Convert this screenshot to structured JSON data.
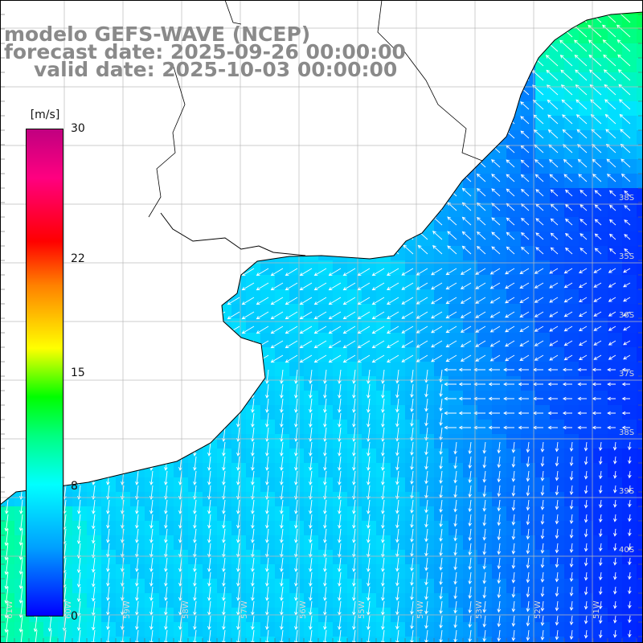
{
  "title": {
    "line1": "modelo GEFS-WAVE (NCEP)",
    "line2": "forecast date: 2025-09-26 00:00:00",
    "line3": "valid date: 2025-10-03 00:00:00"
  },
  "colorbar": {
    "unit": "[m/s]",
    "ticks": [
      "30",
      "22",
      "15",
      "8",
      "0"
    ],
    "tick_values": [
      30,
      22,
      15,
      8,
      0
    ],
    "min": 0,
    "max": 30
  },
  "lat_labels": [
    "38S",
    "35S",
    "36S",
    "37S",
    "38S",
    "39S",
    "40S"
  ],
  "lon_labels": [
    "61W",
    "60W",
    "59W",
    "58W",
    "57W",
    "56W",
    "55W",
    "54W",
    "53W",
    "52W",
    "51W"
  ],
  "colors": {
    "land": "#ffffff",
    "arrow": "#ffffff",
    "coast": "#000000",
    "grid": "#bbbbbb",
    "title": "#8a8a8a"
  }
}
